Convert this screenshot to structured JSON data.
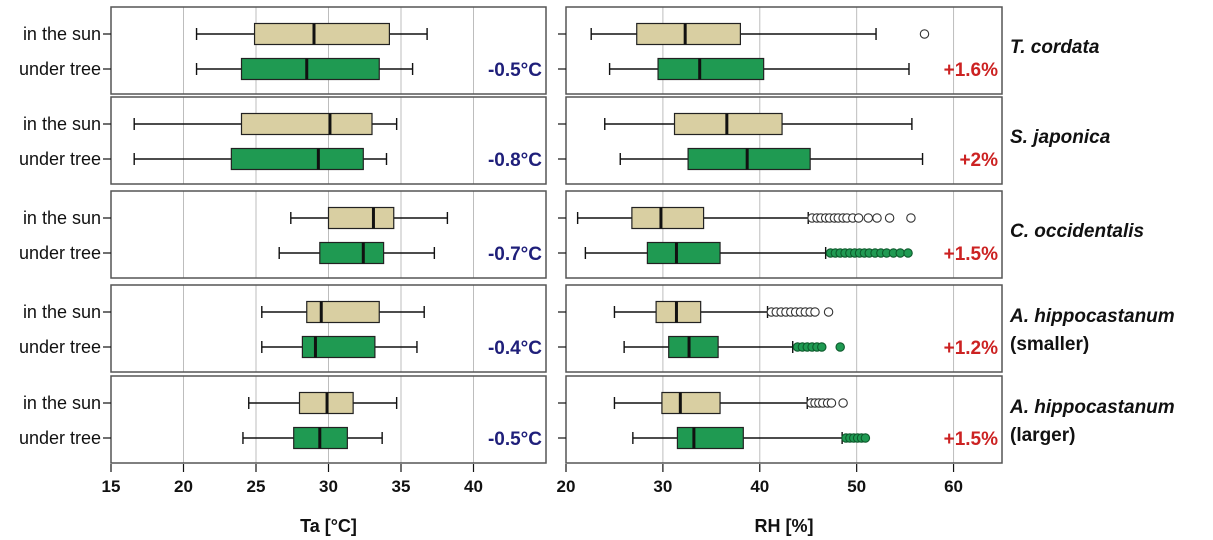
{
  "colors": {
    "sun_box": "#d9cfa2",
    "tree_box": "#1f9a52",
    "ta_diff_text": "#1f1f7a",
    "rh_diff_text": "#cc2222"
  },
  "chart_data": [
    {
      "type": "boxplot",
      "xlabel": "Ta [°C]",
      "xlim": [
        15,
        45
      ],
      "xticks": [
        15,
        20,
        25,
        30,
        35,
        40
      ],
      "grid": true,
      "groups": [
        {
          "species": "T. cordata",
          "subtitle": "",
          "difference": "-0.5°C",
          "boxes": [
            {
              "category": "in the sun",
              "min": 20.9,
              "q1": 24.9,
              "median": 29.0,
              "q3": 34.2,
              "max": 36.8,
              "outliers": []
            },
            {
              "category": "under tree",
              "min": 20.9,
              "q1": 24.0,
              "median": 28.5,
              "q3": 33.5,
              "max": 35.8,
              "outliers": []
            }
          ]
        },
        {
          "species": "S. japonica",
          "subtitle": "",
          "difference": "-0.8°C",
          "boxes": [
            {
              "category": "in the sun",
              "min": 16.6,
              "q1": 24.0,
              "median": 30.1,
              "q3": 33.0,
              "max": 34.7,
              "outliers": []
            },
            {
              "category": "under tree",
              "min": 16.6,
              "q1": 23.3,
              "median": 29.3,
              "q3": 32.4,
              "max": 34.0,
              "outliers": []
            }
          ]
        },
        {
          "species": "C. occidentalis",
          "subtitle": "",
          "difference": "-0.7°C",
          "boxes": [
            {
              "category": "in the sun",
              "min": 27.4,
              "q1": 30.0,
              "median": 33.1,
              "q3": 34.5,
              "max": 38.2,
              "outliers": []
            },
            {
              "category": "under tree",
              "min": 26.6,
              "q1": 29.4,
              "median": 32.4,
              "q3": 33.8,
              "max": 37.3,
              "outliers": []
            }
          ]
        },
        {
          "species": "A. hippocastanum",
          "subtitle": "(smaller)",
          "difference": "-0.4°C",
          "boxes": [
            {
              "category": "in the sun",
              "min": 25.4,
              "q1": 28.5,
              "median": 29.5,
              "q3": 33.5,
              "max": 36.6,
              "outliers": []
            },
            {
              "category": "under tree",
              "min": 25.4,
              "q1": 28.2,
              "median": 29.1,
              "q3": 33.2,
              "max": 36.1,
              "outliers": []
            }
          ]
        },
        {
          "species": "A. hippocastanum",
          "subtitle": "(larger)",
          "difference": "-0.5°C",
          "boxes": [
            {
              "category": "in the sun",
              "min": 24.5,
              "q1": 28.0,
              "median": 29.9,
              "q3": 31.7,
              "max": 34.7,
              "outliers": []
            },
            {
              "category": "under tree",
              "min": 24.1,
              "q1": 27.6,
              "median": 29.4,
              "q3": 31.3,
              "max": 33.7,
              "outliers": []
            }
          ]
        }
      ]
    },
    {
      "type": "boxplot",
      "xlabel": "RH [%]",
      "xlim": [
        20,
        65
      ],
      "xticks": [
        20,
        30,
        40,
        50,
        60
      ],
      "grid": true,
      "groups": [
        {
          "species": "T. cordata",
          "subtitle": "",
          "difference": "+1.6%",
          "boxes": [
            {
              "category": "in the sun",
              "min": 22.6,
              "q1": 27.3,
              "median": 32.3,
              "q3": 38.0,
              "max": 52.0,
              "outliers": [
                57.0
              ]
            },
            {
              "category": "under tree",
              "min": 24.5,
              "q1": 29.5,
              "median": 33.8,
              "q3": 40.4,
              "max": 55.4,
              "outliers": []
            }
          ]
        },
        {
          "species": "S. japonica",
          "subtitle": "",
          "difference": "+2%",
          "boxes": [
            {
              "category": "in the sun",
              "min": 24.0,
              "q1": 31.2,
              "median": 36.6,
              "q3": 42.3,
              "max": 55.7,
              "outliers": []
            },
            {
              "category": "under tree",
              "min": 25.6,
              "q1": 32.6,
              "median": 38.7,
              "q3": 45.2,
              "max": 56.8,
              "outliers": []
            }
          ]
        },
        {
          "species": "C. occidentalis",
          "subtitle": "",
          "difference": "+1.5%",
          "boxes": [
            {
              "category": "in the sun",
              "min": 21.2,
              "q1": 26.8,
              "median": 29.8,
              "q3": 34.2,
              "max": 45.0,
              "outliers": [
                45.4,
                45.9,
                46.3,
                46.8,
                47.2,
                47.7,
                48.1,
                48.6,
                49.0,
                49.6,
                50.2,
                51.2,
                52.1,
                53.4,
                55.6
              ]
            },
            {
              "category": "under tree",
              "min": 22.0,
              "q1": 28.4,
              "median": 31.4,
              "q3": 35.9,
              "max": 46.8,
              "outliers": [
                47.3,
                47.8,
                48.3,
                48.8,
                49.3,
                49.8,
                50.3,
                50.8,
                51.3,
                51.9,
                52.5,
                53.1,
                53.8,
                54.5,
                55.3
              ]
            }
          ]
        },
        {
          "species": "A. hippocastanum",
          "subtitle": "(smaller)",
          "difference": "+1.2%",
          "boxes": [
            {
              "category": "in the sun",
              "min": 25.0,
              "q1": 29.3,
              "median": 31.4,
              "q3": 33.9,
              "max": 40.8,
              "outliers": [
                41.2,
                41.7,
                42.2,
                42.7,
                43.2,
                43.7,
                44.2,
                44.7,
                45.2,
                45.7,
                47.1
              ]
            },
            {
              "category": "under tree",
              "min": 26.0,
              "q1": 30.6,
              "median": 32.7,
              "q3": 35.7,
              "max": 43.4,
              "outliers": [
                43.9,
                44.4,
                44.9,
                45.4,
                45.9,
                46.4,
                48.3
              ]
            }
          ]
        },
        {
          "species": "A. hippocastanum",
          "subtitle": "(larger)",
          "difference": "+1.5%",
          "boxes": [
            {
              "category": "in the sun",
              "min": 25.0,
              "q1": 29.9,
              "median": 31.8,
              "q3": 35.9,
              "max": 44.9,
              "outliers": [
                45.3,
                45.7,
                46.1,
                46.5,
                47.0,
                47.4,
                48.6
              ]
            },
            {
              "category": "under tree",
              "min": 26.9,
              "q1": 31.5,
              "median": 33.2,
              "q3": 38.3,
              "max": 48.5,
              "outliers": [
                48.9,
                49.3,
                49.7,
                50.1,
                50.5,
                50.9
              ]
            }
          ]
        }
      ]
    }
  ]
}
